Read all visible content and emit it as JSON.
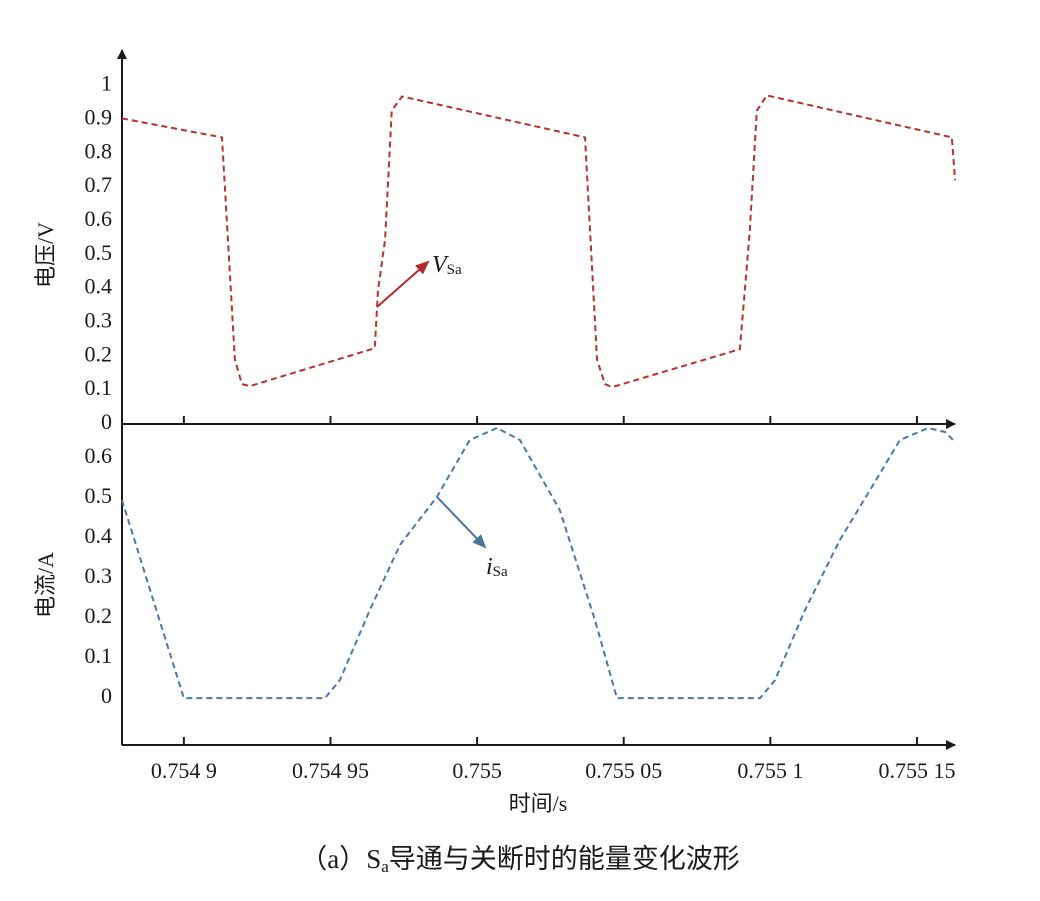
{
  "chart_data": [
    {
      "type": "line",
      "ylabel": "电压/V",
      "color": "#b5332b",
      "annotation": {
        "text": "V",
        "sub": "Sa"
      },
      "xlim": [
        0.7548789,
        0.755164
      ],
      "ylim": [
        0,
        1.12
      ],
      "yticks": [
        0,
        0.1,
        0.2,
        0.3,
        0.4,
        0.5,
        0.6,
        0.7,
        0.8,
        0.9,
        1
      ],
      "x": [
        0.7548789,
        0.754913,
        0.7549174,
        0.7549198,
        0.7549225,
        0.7549651,
        0.7549662,
        0.7549686,
        0.7549709,
        0.7549744,
        0.7550368,
        0.7550409,
        0.7550436,
        0.755046,
        0.7550896,
        0.7550913,
        0.755093,
        0.7550954,
        0.7550988,
        0.7551619,
        0.755163
      ],
      "values": [
        0.903,
        0.847,
        0.19,
        0.118,
        0.112,
        0.224,
        0.395,
        0.543,
        0.926,
        0.968,
        0.847,
        0.19,
        0.118,
        0.109,
        0.221,
        0.395,
        0.572,
        0.926,
        0.971,
        0.847,
        0.72
      ]
    },
    {
      "type": "line",
      "ylabel": "电流/A",
      "xlabel": "时间/s",
      "color": "#4a78ad",
      "annotation": {
        "text": "i",
        "sub": "Sa"
      },
      "xlim": [
        0.7548789,
        0.755164
      ],
      "ylim": [
        -0.117,
        0.685
      ],
      "yticks": [
        0,
        0.1,
        0.2,
        0.3,
        0.4,
        0.5,
        0.6
      ],
      "xticks": [
        {
          "value": 0.7549,
          "label": "0.754 9"
        },
        {
          "value": 0.75495,
          "label": "0.754 95"
        },
        0.755,
        {
          "value": 0.75505,
          "label": "0.755 05"
        },
        {
          "value": 0.7551,
          "label": "0.755 1"
        },
        {
          "value": 0.75515,
          "label": "0.755 15"
        }
      ],
      "x": [
        0.7548789,
        0.7549,
        0.7549481,
        0.7549532,
        0.7549634,
        0.7549737,
        0.7549863,
        0.7549975,
        0.7550068,
        0.7550146,
        0.7550282,
        0.7550402,
        0.7550477,
        0.7550965,
        0.7551016,
        0.7551118,
        0.7551237,
        0.755134,
        0.7551442,
        0.7551538,
        0.7551596,
        0.755163
      ],
      "values": [
        0.495,
        0,
        0,
        0.045,
        0.22,
        0.383,
        0.503,
        0.645,
        0.675,
        0.645,
        0.47,
        0.195,
        0,
        0,
        0.045,
        0.22,
        0.395,
        0.52,
        0.645,
        0.675,
        0.665,
        0.64
      ]
    }
  ],
  "caption": {
    "prefix": "（a）S",
    "sub": "a",
    "rest": "导通与关断时的能量变化波形"
  }
}
